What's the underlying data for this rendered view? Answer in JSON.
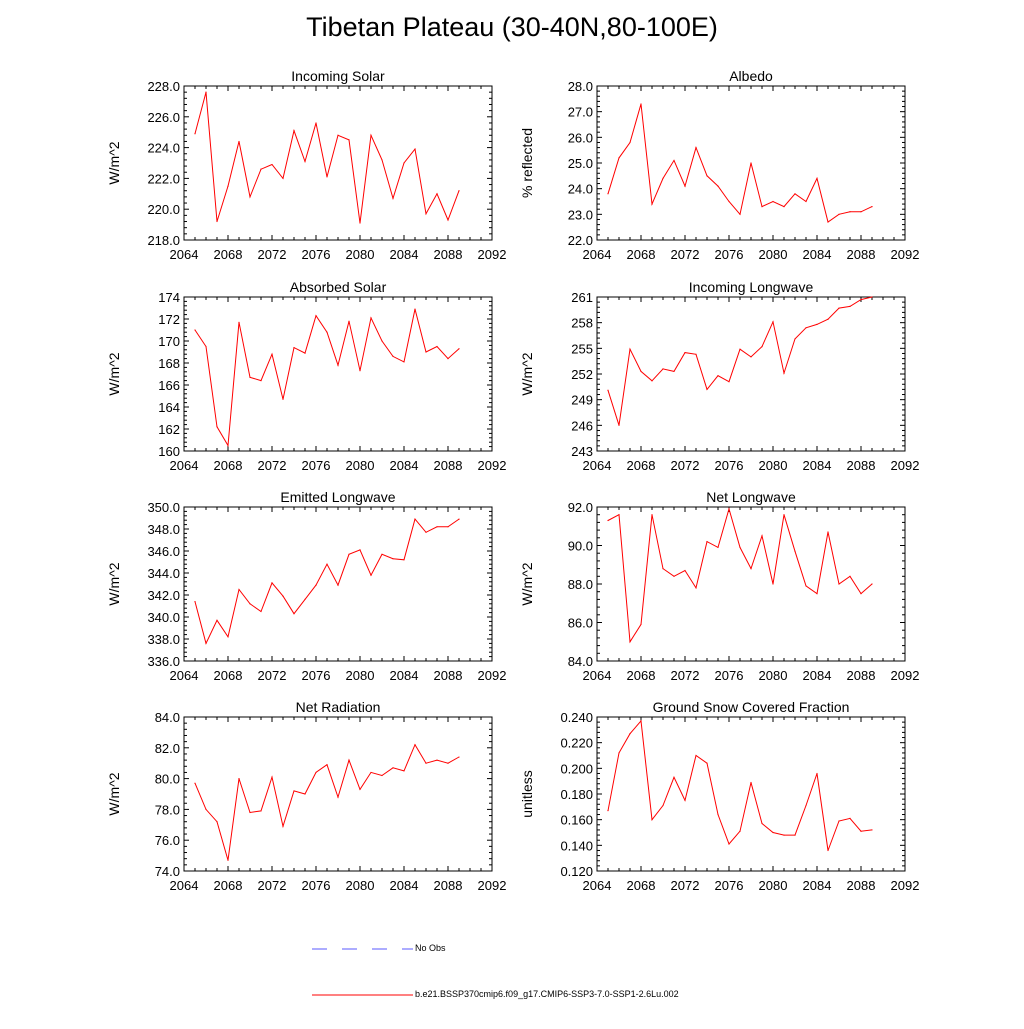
{
  "figure": {
    "title": "Tibetan Plateau (30-40N,80-100E)",
    "legend": [
      {
        "label": "No Obs",
        "color": "#5a5aff",
        "style": "dashed"
      },
      {
        "label": "b.e21.BSSP370cmip6.f09_g17.CMIP6-SSP3-7.0-SSP1-2.6Lu.002",
        "color": "#ff0000",
        "style": "solid"
      }
    ]
  },
  "chart_data": [
    {
      "type": "line",
      "title": "Incoming Solar",
      "ylabel": "W/m^2",
      "xlim": [
        2064,
        2092
      ],
      "ylim": [
        218,
        228
      ],
      "xticks": [
        "2064",
        "2068",
        "2072",
        "2076",
        "2080",
        "2084",
        "2088",
        "2092"
      ],
      "yticks": [
        "218.0",
        "220.0",
        "222.0",
        "224.0",
        "226.0",
        "228.0"
      ],
      "x": [
        2065,
        2066,
        2067,
        2068,
        2069,
        2070,
        2071,
        2072,
        2073,
        2074,
        2075,
        2076,
        2077,
        2078,
        2079,
        2080,
        2081,
        2082,
        2083,
        2084,
        2085,
        2086,
        2087,
        2088,
        2089
      ],
      "series": [
        {
          "color": "#ff0000",
          "values": [
            224.9,
            227.6,
            219.2,
            221.5,
            224.4,
            220.8,
            222.6,
            222.9,
            222.0,
            225.1,
            223.1,
            225.6,
            222.1,
            224.8,
            224.5,
            219.1,
            224.8,
            223.2,
            220.7,
            223.0,
            223.9,
            219.7,
            221.0,
            219.3,
            221.2
          ]
        }
      ]
    },
    {
      "type": "line",
      "title": "Albedo",
      "ylabel": "% reflected",
      "xlim": [
        2064,
        2092
      ],
      "ylim": [
        22,
        28
      ],
      "xticks": [
        "2064",
        "2068",
        "2072",
        "2076",
        "2080",
        "2084",
        "2088",
        "2092"
      ],
      "yticks": [
        "22.0",
        "23.0",
        "24.0",
        "25.0",
        "26.0",
        "27.0",
        "28.0"
      ],
      "x": [
        2065,
        2066,
        2067,
        2068,
        2069,
        2070,
        2071,
        2072,
        2073,
        2074,
        2075,
        2076,
        2077,
        2078,
        2079,
        2080,
        2081,
        2082,
        2083,
        2084,
        2085,
        2086,
        2087,
        2088,
        2089
      ],
      "series": [
        {
          "color": "#ff0000",
          "values": [
            23.8,
            25.2,
            25.8,
            27.3,
            23.4,
            24.4,
            25.1,
            24.1,
            25.6,
            24.5,
            24.1,
            23.5,
            23.0,
            25.0,
            23.3,
            23.5,
            23.3,
            23.8,
            23.5,
            24.4,
            22.7,
            23.0,
            23.1,
            23.1,
            23.3
          ]
        }
      ]
    },
    {
      "type": "line",
      "title": "Absorbed Solar",
      "ylabel": "W/m^2",
      "xlim": [
        2064,
        2092
      ],
      "ylim": [
        160,
        174
      ],
      "xticks": [
        "2064",
        "2068",
        "2072",
        "2076",
        "2080",
        "2084",
        "2088",
        "2092"
      ],
      "yticks": [
        "160",
        "162",
        "164",
        "166",
        "168",
        "170",
        "172",
        "174"
      ],
      "x": [
        2065,
        2066,
        2067,
        2068,
        2069,
        2070,
        2071,
        2072,
        2073,
        2074,
        2075,
        2076,
        2077,
        2078,
        2079,
        2080,
        2081,
        2082,
        2083,
        2084,
        2085,
        2086,
        2087,
        2088,
        2089
      ],
      "series": [
        {
          "color": "#ff0000",
          "values": [
            171.0,
            169.5,
            162.2,
            160.5,
            171.7,
            166.7,
            166.4,
            168.8,
            164.7,
            169.4,
            168.9,
            172.3,
            170.8,
            167.8,
            171.8,
            167.3,
            172.1,
            170.0,
            168.6,
            168.1,
            172.9,
            169.0,
            169.5,
            168.4,
            169.3
          ]
        }
      ]
    },
    {
      "type": "line",
      "title": "Incoming Longwave",
      "ylabel": "W/m^2",
      "xlim": [
        2064,
        2092
      ],
      "ylim": [
        243,
        261
      ],
      "xticks": [
        "2064",
        "2068",
        "2072",
        "2076",
        "2080",
        "2084",
        "2088",
        "2092"
      ],
      "yticks": [
        "243",
        "246",
        "249",
        "252",
        "255",
        "258",
        "261"
      ],
      "x": [
        2065,
        2066,
        2067,
        2068,
        2069,
        2070,
        2071,
        2072,
        2073,
        2074,
        2075,
        2076,
        2077,
        2078,
        2079,
        2080,
        2081,
        2082,
        2083,
        2084,
        2085,
        2086,
        2087,
        2088,
        2089
      ],
      "series": [
        {
          "color": "#ff0000",
          "values": [
            250.1,
            246.0,
            254.9,
            252.3,
            251.2,
            252.6,
            252.3,
            254.5,
            254.3,
            250.2,
            251.8,
            251.1,
            254.9,
            254.0,
            255.2,
            258.1,
            252.1,
            256.1,
            257.4,
            257.8,
            258.4,
            259.7,
            259.9,
            260.7,
            261.0
          ]
        }
      ]
    },
    {
      "type": "line",
      "title": "Emitted Longwave",
      "ylabel": "W/m^2",
      "xlim": [
        2064,
        2092
      ],
      "ylim": [
        336,
        350
      ],
      "xticks": [
        "2064",
        "2068",
        "2072",
        "2076",
        "2080",
        "2084",
        "2088",
        "2092"
      ],
      "yticks": [
        "336.0",
        "338.0",
        "340.0",
        "342.0",
        "344.0",
        "346.0",
        "348.0",
        "350.0"
      ],
      "x": [
        2065,
        2066,
        2067,
        2068,
        2069,
        2070,
        2071,
        2072,
        2073,
        2074,
        2075,
        2076,
        2077,
        2078,
        2079,
        2080,
        2081,
        2082,
        2083,
        2084,
        2085,
        2086,
        2087,
        2088,
        2089
      ],
      "series": [
        {
          "color": "#ff0000",
          "values": [
            341.4,
            337.6,
            339.7,
            338.2,
            342.5,
            341.2,
            340.5,
            343.1,
            341.9,
            340.3,
            341.6,
            342.9,
            344.8,
            342.9,
            345.7,
            346.1,
            343.8,
            345.7,
            345.3,
            345.2,
            348.9,
            347.7,
            348.2,
            348.2,
            348.9
          ]
        }
      ]
    },
    {
      "type": "line",
      "title": "Net Longwave",
      "ylabel": "W/m^2",
      "xlim": [
        2064,
        2092
      ],
      "ylim": [
        84,
        92
      ],
      "xticks": [
        "2064",
        "2068",
        "2072",
        "2076",
        "2080",
        "2084",
        "2088",
        "2092"
      ],
      "yticks": [
        "84.0",
        "86.0",
        "88.0",
        "90.0",
        "92.0"
      ],
      "x": [
        2065,
        2066,
        2067,
        2068,
        2069,
        2070,
        2071,
        2072,
        2073,
        2074,
        2075,
        2076,
        2077,
        2078,
        2079,
        2080,
        2081,
        2082,
        2083,
        2084,
        2085,
        2086,
        2087,
        2088,
        2089
      ],
      "series": [
        {
          "color": "#ff0000",
          "values": [
            91.3,
            91.6,
            85.0,
            85.9,
            91.6,
            88.8,
            88.4,
            88.7,
            87.8,
            90.2,
            89.9,
            91.9,
            89.9,
            88.8,
            90.5,
            88.0,
            91.6,
            89.7,
            87.9,
            87.5,
            90.7,
            88.0,
            88.4,
            87.5,
            88.0
          ]
        }
      ]
    },
    {
      "type": "line",
      "title": "Net Radiation",
      "ylabel": "W/m^2",
      "xlim": [
        2064,
        2092
      ],
      "ylim": [
        74,
        84
      ],
      "xticks": [
        "2064",
        "2068",
        "2072",
        "2076",
        "2080",
        "2084",
        "2088",
        "2092"
      ],
      "yticks": [
        "74.0",
        "76.0",
        "78.0",
        "80.0",
        "82.0",
        "84.0"
      ],
      "x": [
        2065,
        2066,
        2067,
        2068,
        2069,
        2070,
        2071,
        2072,
        2073,
        2074,
        2075,
        2076,
        2077,
        2078,
        2079,
        2080,
        2081,
        2082,
        2083,
        2084,
        2085,
        2086,
        2087,
        2088,
        2089
      ],
      "series": [
        {
          "color": "#ff0000",
          "values": [
            79.7,
            78.0,
            77.2,
            74.7,
            80.0,
            77.8,
            77.9,
            80.1,
            76.9,
            79.2,
            79.0,
            80.4,
            80.9,
            78.8,
            81.2,
            79.3,
            80.4,
            80.2,
            80.7,
            80.5,
            82.2,
            81.0,
            81.2,
            81.0,
            81.4
          ]
        }
      ]
    },
    {
      "type": "line",
      "title": "Ground Snow Covered Fraction",
      "ylabel": "unitless",
      "xlim": [
        2064,
        2092
      ],
      "ylim": [
        0.12,
        0.24
      ],
      "xticks": [
        "2064",
        "2068",
        "2072",
        "2076",
        "2080",
        "2084",
        "2088",
        "2092"
      ],
      "yticks": [
        "0.120",
        "0.140",
        "0.160",
        "0.180",
        "0.200",
        "0.220",
        "0.240"
      ],
      "x": [
        2065,
        2066,
        2067,
        2068,
        2069,
        2070,
        2071,
        2072,
        2073,
        2074,
        2075,
        2076,
        2077,
        2078,
        2079,
        2080,
        2081,
        2082,
        2083,
        2084,
        2085,
        2086,
        2087,
        2088,
        2089
      ],
      "series": [
        {
          "color": "#ff0000",
          "values": [
            0.167,
            0.212,
            0.227,
            0.237,
            0.16,
            0.171,
            0.193,
            0.175,
            0.21,
            0.204,
            0.164,
            0.141,
            0.151,
            0.189,
            0.157,
            0.15,
            0.148,
            0.148,
            0.171,
            0.196,
            0.136,
            0.159,
            0.161,
            0.151,
            0.152
          ]
        }
      ]
    }
  ]
}
